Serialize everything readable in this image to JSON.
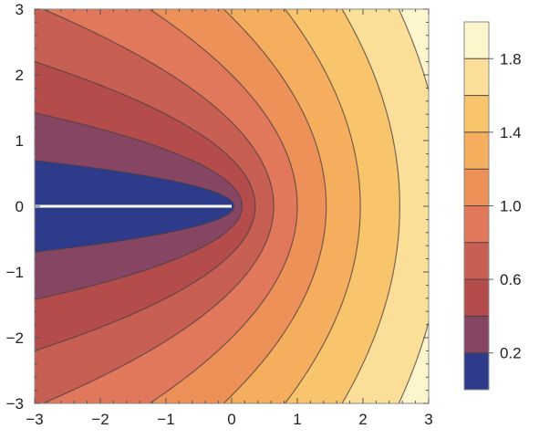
{
  "chart_data": {
    "type": "contour",
    "function": "Re[Sqrt[x + i*y]]",
    "xlim": [
      -3,
      3
    ],
    "ylim": [
      -3,
      3
    ],
    "x_ticks": [
      -3,
      -2,
      -1,
      0,
      1,
      2,
      3
    ],
    "y_ticks": [
      -3,
      -2,
      -1,
      0,
      1,
      2,
      3
    ],
    "x_tick_labels": [
      "−3",
      "−2",
      "−1",
      "0",
      "1",
      "2",
      "3"
    ],
    "y_tick_labels": [
      "−3",
      "−2",
      "−1",
      "0",
      "1",
      "2",
      "3"
    ],
    "contour_levels": [
      0.2,
      0.4,
      0.6,
      0.8,
      1.0,
      1.2,
      1.4,
      1.6,
      1.8
    ],
    "band_colors": [
      "#2e3b8a",
      "#874564",
      "#b54c4c",
      "#c85f53",
      "#e1775b",
      "#ee9158",
      "#f5ad5e",
      "#f8c56c",
      "#fbdf99",
      "#fdf6cc"
    ],
    "branch_cut": {
      "from": [
        -3,
        0
      ],
      "to": [
        0,
        0
      ],
      "color": "#ffffff"
    },
    "legend": {
      "type": "colorbar",
      "placement": "right",
      "range": [
        0,
        2
      ],
      "tick_values": [
        0.2,
        0.6,
        1.0,
        1.4,
        1.8
      ],
      "tick_labels": [
        "0.2",
        "0.6",
        "1.0",
        "1.4",
        "1.8"
      ]
    },
    "title": "",
    "xlabel": "",
    "ylabel": ""
  }
}
